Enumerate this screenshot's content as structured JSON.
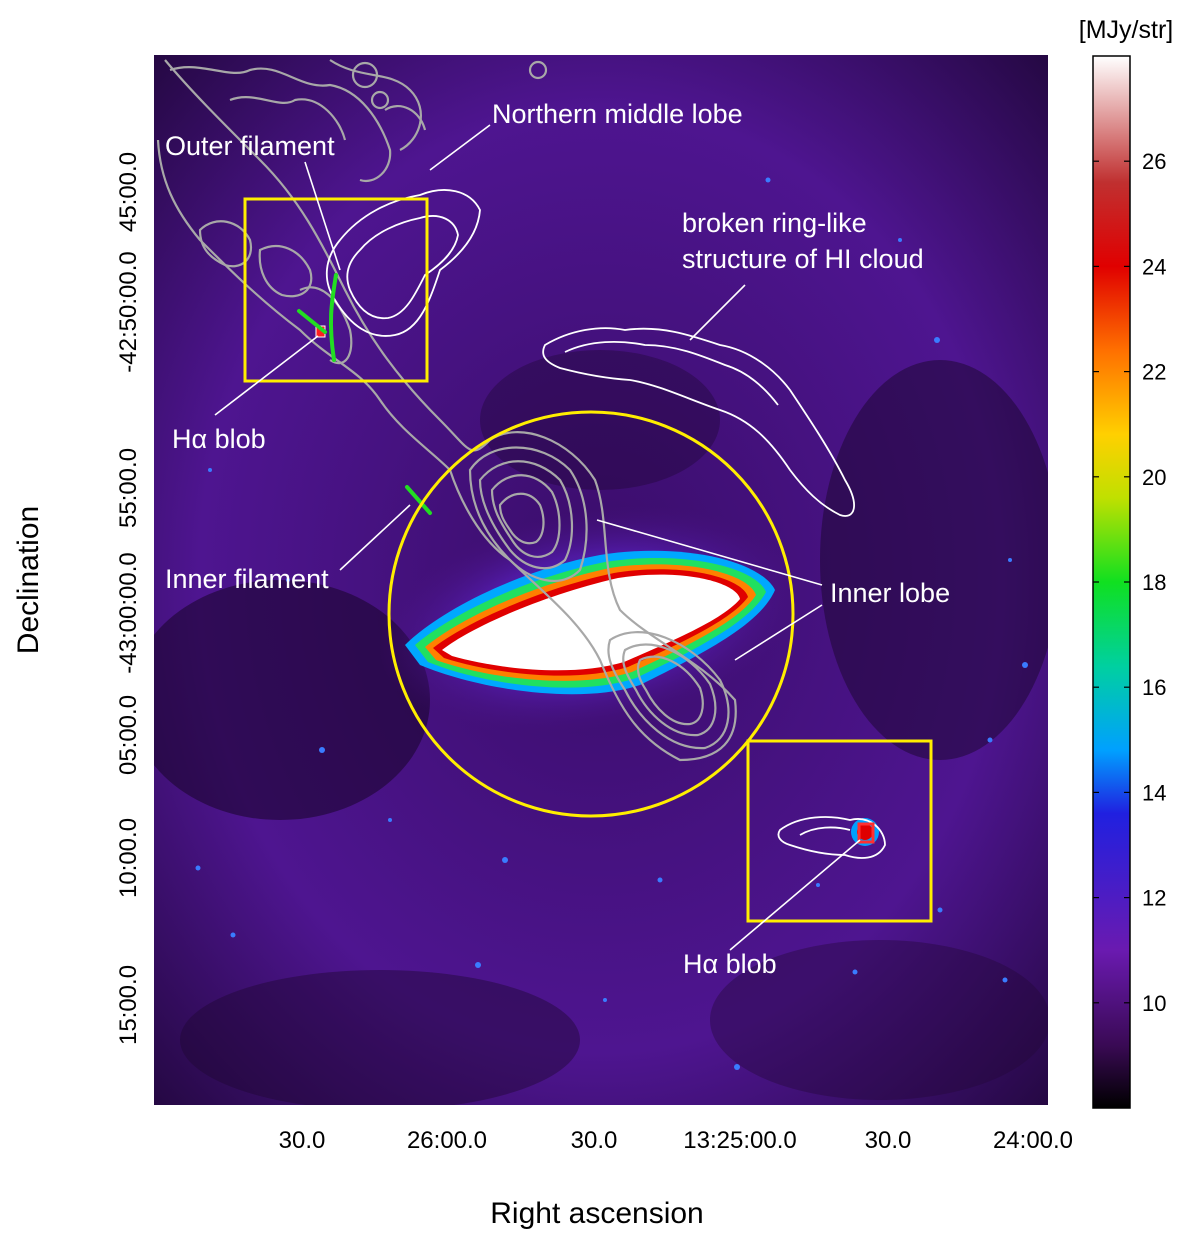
{
  "axes": {
    "xlabel": "Right ascension",
    "ylabel": "Declination",
    "x_ticks": [
      "30.0",
      "26:00.0",
      "30.0",
      "13:25:00.0",
      "30.0",
      "24:00.0"
    ],
    "y_ticks": [
      "45:00.0",
      "-42:50:00.0",
      "55:00.0",
      "-43:00:00.0",
      "05:00.0",
      "10:00.0",
      "15:00.0"
    ]
  },
  "colorbar": {
    "unit": "[MJy/str]",
    "ticks": [
      "26",
      "24",
      "22",
      "20",
      "18",
      "16",
      "14",
      "12",
      "10"
    ],
    "range": [
      8,
      28
    ],
    "colors": [
      "#000000",
      "#3a0a55",
      "#6a1ab0",
      "#2020e0",
      "#00a0ff",
      "#00d0a0",
      "#10e020",
      "#c0e000",
      "#ffd000",
      "#ff7000",
      "#e00000",
      "#c03030",
      "#ffffff"
    ]
  },
  "annotations": {
    "northern_middle_lobe": "Northern middle lobe",
    "outer_filament": "Outer filament",
    "broken_ring_1": "broken ring-like",
    "broken_ring_2": "structure of HI cloud",
    "ha_blob_1": "Hα blob",
    "inner_filament": "Inner filament",
    "inner_lobe": "Inner lobe",
    "ha_blob_2": "Hα blob"
  },
  "colors": {
    "background_purple": "#4a1280",
    "marker_yellow": "#ffee00",
    "filament_green": "#22dd22",
    "radio_contour": "#a8a8a8",
    "hi_contour": "#ffffff"
  }
}
